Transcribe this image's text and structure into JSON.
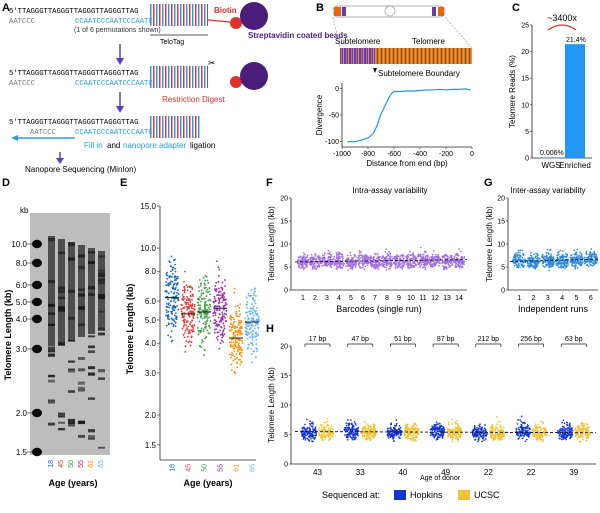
{
  "panels": {
    "A": {
      "letter": "A",
      "seq_top": "5'TTAGGGTTAGGGTTAGGGTTAGGGTTAG",
      "seq_comp": "AATCCC",
      "seq_tag": "CCAATCCCAATCCCAATC",
      "permutation_note": "(1 of 6 permutations shown)",
      "telotag_label": "TeloTag",
      "biotin_label": "Biotin",
      "beads_label": "Streptavidin coated beads",
      "restriction_label": "Restriction Digest",
      "fill_in_label": "Fill in",
      "and_label": "and",
      "adapter_label": "nanopore adapter",
      "ligation_label": "ligation",
      "sequencing_label": "Nanopore Sequencing (MinIon)"
    },
    "B": {
      "letter": "B",
      "subtelomere_label": "Subtelomere",
      "telomere_label": "Telomere",
      "boundary_label": "Subtelomere Boundary",
      "ylabel": "Divergence",
      "xlabel": "Distance from end (bp)",
      "xticks": [
        "-1000",
        "-800",
        "-600",
        "-400",
        "-200",
        "0"
      ],
      "yticks": [
        "0",
        "-50",
        "-100"
      ]
    },
    "C": {
      "letter": "C",
      "ylabel": "Telomere Reads (%)",
      "fold_label": "~3400x",
      "yticks": [
        "0",
        "5",
        "10",
        "15",
        "20",
        "25"
      ],
      "categories": [
        "WGS",
        "Enriched"
      ],
      "value_labels": [
        "0.006%",
        "21.4%"
      ]
    },
    "D": {
      "letter": "D",
      "unit": "kb",
      "ylabel": "Telomere Length (kb)",
      "ladder": [
        "10.0",
        "8.0",
        "6.0",
        "5.0",
        "4.0",
        "3.0",
        "2.0",
        "1.5"
      ],
      "lanes": [
        "18",
        "45",
        "50",
        "55",
        "61",
        "65"
      ],
      "xlabel": "Age (years)"
    },
    "E": {
      "letter": "E",
      "ylabel": "Telomere Length (kb)",
      "yticks": [
        "15.0",
        "10.0",
        "8.0",
        "6.0",
        "5.0",
        "4.0",
        "3.0",
        "2.0",
        "1.5"
      ],
      "xlabel": "Age (years)"
    },
    "F": {
      "letter": "F",
      "title": "Intra-assay variability",
      "ylabel": "Telomere Length (kb)",
      "xlabel": "Barcodes (single run)",
      "yticks": [
        "0",
        "5",
        "10",
        "15",
        "20"
      ]
    },
    "G": {
      "letter": "G",
      "title": "Inter-assay variability",
      "ylabel": "Telomere Length (kb)",
      "xlabel": "Independent runs",
      "yticks": [
        "0",
        "5",
        "10",
        "15",
        "20"
      ]
    },
    "H": {
      "letter": "H",
      "ylabel": "Telomere Length (kb)",
      "xlabel": "Age of donor",
      "yticks": [
        "0",
        "5",
        "10",
        "15",
        "20"
      ],
      "legend_title": "Sequenced at:",
      "legend": [
        "Hopkins",
        "UCSC"
      ]
    }
  },
  "colors": {
    "blue_probe": "#27a0e0",
    "red_probe": "#e0353a",
    "arrow": "#5b3fc4",
    "bead": "#4b1d7a",
    "biotin": "#e0302a",
    "lane18": "#1565c0",
    "lane45": "#e53935",
    "lane50": "#43a047",
    "lane55": "#9c27b0",
    "lane61": "#ff8f00",
    "lane65": "#64b5f6",
    "violin_purple": "#a270e6",
    "violin_blue": "#2c8ae0",
    "hopkins": "#1334d6",
    "ucsc": "#f2c230",
    "bar": "#2196f3"
  },
  "chart_data": [
    {
      "type": "line",
      "panel": "B",
      "xlabel": "Distance from end (bp)",
      "ylabel": "Divergence",
      "xlim": [
        -1000,
        0
      ],
      "ylim": [
        -110,
        10
      ],
      "x": [
        -960,
        -900,
        -850,
        -800,
        -760,
        -730,
        -700,
        -680,
        -660,
        -640,
        -620,
        -600,
        -560,
        -500,
        -440,
        -400,
        -350,
        -300,
        -250,
        -200,
        -150,
        -100,
        -50,
        -10
      ],
      "y": [
        -100,
        -100,
        -97,
        -93,
        -85,
        -70,
        -48,
        -38,
        -28,
        -18,
        -10,
        -6,
        -6,
        -5,
        -5,
        -4,
        -3,
        -3,
        -2,
        -3,
        -2,
        -2,
        -1,
        -3
      ]
    },
    {
      "type": "bar",
      "panel": "C",
      "ylabel": "Telomere Reads (%)",
      "categories": [
        "WGS",
        "Enriched"
      ],
      "values": [
        0.006,
        21.4
      ],
      "ylim": [
        0,
        25
      ]
    },
    {
      "type": "scatter",
      "panel": "E",
      "ylabel": "Telomere Length (kb)",
      "xlabel": "Age (years)",
      "scale": "log",
      "ylim": [
        1.4,
        15
      ],
      "categories": [
        "18",
        "45",
        "50",
        "55",
        "61",
        "65"
      ],
      "medians": [
        6.2,
        5.3,
        5.4,
        5.6,
        4.2,
        4.9
      ]
    },
    {
      "type": "violin",
      "panel": "F",
      "xlabel": "Barcodes (single run)",
      "ylabel": "Telomere Length (kb)",
      "ylim": [
        0,
        20
      ],
      "categories": [
        "1",
        "2",
        "3",
        "4",
        "5",
        "6",
        "7",
        "8",
        "9",
        "10",
        "11",
        "12",
        "13",
        "14"
      ],
      "medians": [
        6.2,
        6.1,
        6.3,
        6.2,
        6.1,
        6.4,
        6.2,
        6.3,
        6.1,
        6.2,
        6.4,
        6.3,
        6.2,
        6.5
      ]
    },
    {
      "type": "violin",
      "panel": "G",
      "xlabel": "Independent runs",
      "ylabel": "Telomere Length (kb)",
      "ylim": [
        0,
        20
      ],
      "categories": [
        "1",
        "2",
        "3",
        "4",
        "5",
        "6"
      ],
      "medians": [
        6.3,
        6.2,
        6.4,
        6.3,
        6.5,
        6.6
      ]
    },
    {
      "type": "violin",
      "panel": "H",
      "xlabel": "Age of donor",
      "ylabel": "Telomere Length (kb)",
      "ylim": [
        0,
        20
      ],
      "categories": [
        "43",
        "33",
        "40",
        "49",
        "22",
        "22",
        "39"
      ],
      "differences": [
        "17 bp",
        "47 bp",
        "51 bp",
        "87 bp",
        "212 bp",
        "256 bp",
        "63 bp"
      ],
      "series": [
        {
          "name": "Hopkins",
          "medians": [
            5.3,
            5.5,
            5.4,
            5.6,
            5.2,
            5.5,
            5.4
          ]
        },
        {
          "name": "UCSC",
          "medians": [
            5.3,
            5.5,
            5.4,
            5.5,
            5.4,
            5.3,
            5.4
          ]
        }
      ]
    }
  ]
}
